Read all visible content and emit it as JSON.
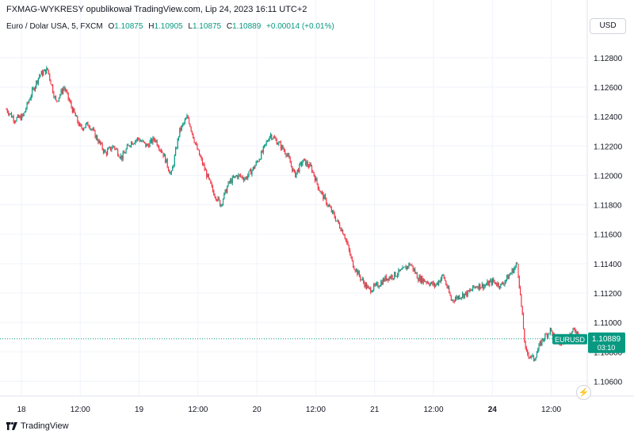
{
  "header": {
    "title": "FXMAG-WYKRESY opublikował TradingView.com, Lip 24, 2023 16:11 UTC+2"
  },
  "legend": {
    "symbol": "Euro / Dolar USA, 5, FXCM",
    "open_label": "O",
    "open": "1.10875",
    "high_label": "H",
    "high": "1.10905",
    "low_label": "L",
    "low": "1.10875",
    "close_label": "C",
    "close": "1.10889",
    "change": "+0.00014 (+0.01%)"
  },
  "currency_button": "USD",
  "price_badge": {
    "symbol": "EURUSD",
    "price": "1.10889",
    "countdown": "03:10"
  },
  "footer": {
    "brand": "TradingView"
  },
  "colors": {
    "up": "#089981",
    "down": "#f23645",
    "grid": "#f0f3fa",
    "badge": "#089981"
  },
  "icons": {
    "alert": "lightning-icon",
    "logo": "tradingview-logo-icon"
  },
  "chart_data": {
    "type": "line",
    "title": "",
    "xlabel": "",
    "ylabel": "",
    "x_ticks": [
      "18",
      "12:00",
      "19",
      "12:00",
      "20",
      "12:00",
      "21",
      "12:00",
      "24",
      "12:00"
    ],
    "y_ticks": [
      "1.12800",
      "1.12600",
      "1.12400",
      "1.12200",
      "1.12000",
      "1.11800",
      "1.11600",
      "1.11400",
      "1.11200",
      "1.11000",
      "1.10800",
      "1.10600"
    ],
    "ylim": [
      1.105,
      1.1295
    ],
    "last_price": 1.10889,
    "grid": true,
    "series": [
      {
        "points": [
          [
            "18",
            1.1245
          ],
          [
            "18 03:00",
            1.1238
          ],
          [
            "18 06:00",
            1.124
          ],
          [
            "18 09:00",
            1.1255
          ],
          [
            "18 11:00",
            1.1268
          ],
          [
            "18 12:00",
            1.1272
          ],
          [
            "18 13:00",
            1.125
          ],
          [
            "18 15:00",
            1.126
          ],
          [
            "18 16:00",
            1.1245
          ],
          [
            "18 18:00",
            1.1232
          ],
          [
            "18 20:00",
            1.1235
          ],
          [
            "18 22:00",
            1.1225
          ],
          [
            "19",
            1.1215
          ],
          [
            "19 02:00",
            1.122
          ],
          [
            "19 04:00",
            1.1212
          ],
          [
            "19 06:00",
            1.1222
          ],
          [
            "19 08:00",
            1.1225
          ],
          [
            "19 10:00",
            1.122
          ],
          [
            "19 12:00",
            1.1225
          ],
          [
            "19 14:00",
            1.1215
          ],
          [
            "19 16:00",
            1.12
          ],
          [
            "19 17:00",
            1.123
          ],
          [
            "19 18:00",
            1.124
          ],
          [
            "19 20:00",
            1.122
          ],
          [
            "19 22:00",
            1.1205
          ],
          [
            "20",
            1.119
          ],
          [
            "20 01:00",
            1.118
          ],
          [
            "20 02:00",
            1.1195
          ],
          [
            "20 04:00",
            1.12
          ],
          [
            "20 06:00",
            1.1198
          ],
          [
            "20 08:00",
            1.1205
          ],
          [
            "20 09:00",
            1.1215
          ],
          [
            "20 10:00",
            1.1228
          ],
          [
            "20 12:00",
            1.1222
          ],
          [
            "20 13:00",
            1.1215
          ],
          [
            "20 14:00",
            1.12
          ],
          [
            "20 16:00",
            1.121
          ],
          [
            "20 17:00",
            1.1205
          ],
          [
            "20 18:00",
            1.119
          ],
          [
            "20 19:00",
            1.118
          ],
          [
            "20 20:00",
            1.117
          ],
          [
            "20 21:00",
            1.116
          ],
          [
            "20 22:00",
            1.114
          ],
          [
            "20 23:00",
            1.113
          ],
          [
            "21",
            1.1122
          ],
          [
            "21 02:00",
            1.1125
          ],
          [
            "21 04:00",
            1.113
          ],
          [
            "21 06:00",
            1.1132
          ],
          [
            "21 08:00",
            1.1135
          ],
          [
            "21 10:00",
            1.114
          ],
          [
            "21 11:00",
            1.113
          ],
          [
            "21 12:00",
            1.1128
          ],
          [
            "21 14:00",
            1.1125
          ],
          [
            "21 15:00",
            1.1132
          ],
          [
            "21 16:00",
            1.1115
          ],
          [
            "21 18:00",
            1.1118
          ],
          [
            "21 20:00",
            1.112
          ],
          [
            "21 22:00",
            1.1125
          ],
          [
            "24",
            1.1125
          ],
          [
            "24 02:00",
            1.1128
          ],
          [
            "24 04:00",
            1.1125
          ],
          [
            "24 06:00",
            1.1132
          ],
          [
            "24 08:00",
            1.114
          ],
          [
            "24 09:00",
            1.108
          ],
          [
            "24 10:00",
            1.1075
          ],
          [
            "24 11:00",
            1.1088
          ],
          [
            "24 12:00",
            1.1095
          ],
          [
            "24 13:00",
            1.1085
          ],
          [
            "24 14:00",
            1.109
          ],
          [
            "24 15:00",
            1.1095
          ],
          [
            "24 16:00",
            1.10889
          ]
        ]
      }
    ]
  }
}
